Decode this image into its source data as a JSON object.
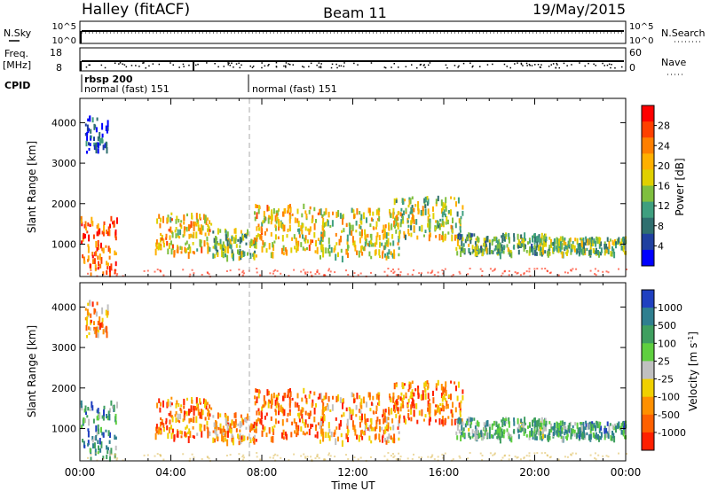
{
  "header": {
    "radar": "Halley (fitACF)",
    "beam": "Beam 11",
    "date": "19/May/2015"
  },
  "strips": {
    "nsky_label": "N.Sky",
    "nsky_ticks": [
      "10^5",
      "10^0"
    ],
    "nsearch_label": "N.Search",
    "nsearch_ticks": [
      "10^5",
      "10^0"
    ],
    "freq_label_1": "Freq.",
    "freq_label_2": "[MHz]",
    "freq_ticks": [
      "18",
      "8"
    ],
    "nave_label": "Nave",
    "nave_ticks": [
      "60",
      "0"
    ],
    "cpid_label": "CPID",
    "cpid_modes": [
      {
        "text": "rbsp 200",
        "hour": 0.15
      },
      {
        "text": "normal (fast) 151",
        "hour": 0.15
      },
      {
        "text": "normal (fast) 151",
        "hour": 7.6
      }
    ]
  },
  "chart_data": [
    {
      "type": "heatmap",
      "quantity": "Power",
      "ylabel": "Slant Range [km]",
      "xlabel": "Time UT",
      "xlim": [
        0,
        24
      ],
      "ylim": [
        200,
        4600
      ],
      "x_ticks": [
        "00:00",
        "04:00",
        "08:00",
        "12:00",
        "16:00",
        "20:00",
        "00:00"
      ],
      "y_ticks": [
        "1000",
        "2000",
        "3000",
        "4000"
      ],
      "colorbar_label": "Power [dB]",
      "colorbar_ticks": [
        "28",
        "24",
        "20",
        "16",
        "12",
        "8",
        "4"
      ],
      "colorbar_colors": [
        "#ff0000",
        "#ff4000",
        "#ff7f00",
        "#ffb000",
        "#e0d000",
        "#7fbf3f",
        "#3f9f7f",
        "#2f6f6f",
        "#2040a0",
        "#0000ff"
      ],
      "clusters": [
        {
          "t0": 0.0,
          "t1": 1.6,
          "r0": 300,
          "r1": 1700,
          "level": 0.85
        },
        {
          "t0": 0.2,
          "t1": 1.2,
          "r0": 3300,
          "r1": 4200,
          "level": 0.15
        },
        {
          "t0": 3.3,
          "t1": 5.8,
          "r0": 800,
          "r1": 1800,
          "level": 0.6
        },
        {
          "t0": 5.8,
          "t1": 7.8,
          "r0": 700,
          "r1": 1400,
          "level": 0.45
        },
        {
          "t0": 7.6,
          "t1": 10.8,
          "r0": 800,
          "r1": 2000,
          "level": 0.6
        },
        {
          "t0": 10.5,
          "t1": 14.0,
          "r0": 700,
          "r1": 1900,
          "level": 0.55
        },
        {
          "t0": 13.8,
          "t1": 16.8,
          "r0": 1200,
          "r1": 2200,
          "level": 0.5
        },
        {
          "t0": 16.5,
          "t1": 20.5,
          "r0": 800,
          "r1": 1300,
          "level": 0.4
        },
        {
          "t0": 20.5,
          "t1": 24.0,
          "r0": 800,
          "r1": 1200,
          "level": 0.45
        }
      ]
    },
    {
      "type": "heatmap",
      "quantity": "Velocity",
      "ylabel": "Slant Range [km]",
      "xlabel": "Time UT",
      "xlim": [
        0,
        24
      ],
      "ylim": [
        200,
        4600
      ],
      "x_ticks": [
        "00:00",
        "04:00",
        "08:00",
        "12:00",
        "16:00",
        "20:00",
        "00:00"
      ],
      "y_ticks": [
        "1000",
        "2000",
        "3000",
        "4000"
      ],
      "colorbar_label": "Velocity [m s^-1]",
      "colorbar_ticks": [
        "1000",
        "500",
        "100",
        "25",
        "-25",
        "-100",
        "-500",
        "-1000"
      ],
      "colorbar_colors": [
        "#2040c0",
        "#2f7f8f",
        "#3f9f5f",
        "#5fcf3f",
        "#c0c0c0",
        "#f0d000",
        "#ff9000",
        "#ff6000",
        "#ff2000"
      ],
      "clusters": [
        {
          "t0": 0.0,
          "t1": 1.6,
          "r0": 300,
          "r1": 1700,
          "level": 0.3
        },
        {
          "t0": 0.2,
          "t1": 1.2,
          "r0": 3300,
          "r1": 4200,
          "level": 0.7
        },
        {
          "t0": 3.3,
          "t1": 5.8,
          "r0": 800,
          "r1": 1800,
          "level": 0.75
        },
        {
          "t0": 5.8,
          "t1": 7.8,
          "r0": 700,
          "r1": 1400,
          "level": 0.7
        },
        {
          "t0": 7.6,
          "t1": 10.8,
          "r0": 800,
          "r1": 2000,
          "level": 0.8
        },
        {
          "t0": 10.5,
          "t1": 14.0,
          "r0": 700,
          "r1": 1900,
          "level": 0.72
        },
        {
          "t0": 13.8,
          "t1": 16.8,
          "r0": 1200,
          "r1": 2200,
          "level": 0.78
        },
        {
          "t0": 16.5,
          "t1": 20.5,
          "r0": 800,
          "r1": 1300,
          "level": 0.35
        },
        {
          "t0": 20.5,
          "t1": 24.0,
          "r0": 800,
          "r1": 1200,
          "level": 0.3
        }
      ]
    }
  ]
}
